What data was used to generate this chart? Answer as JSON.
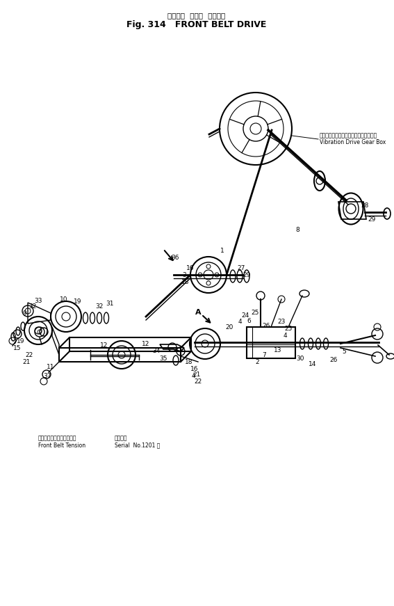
{
  "title_jp": "フロント  ベルト  ドライブ",
  "title_en": "Fig. 314   FRONT BELT DRIVE",
  "bg_color": "#ffffff",
  "lc": "#000000",
  "ann_gb_jp": "バイブレーションドライブギヤボックス",
  "ann_gb_en": "Vibration Drive Gear Box",
  "ann_ten_jp": "フロントベルトテンション",
  "ann_ten_en": "Front Belt Tension",
  "ann_ser_jp": "製造番号",
  "ann_ser_en": "Serial  No.1201 ～",
  "figsize": [
    5.67,
    8.71
  ],
  "dpi": 100
}
